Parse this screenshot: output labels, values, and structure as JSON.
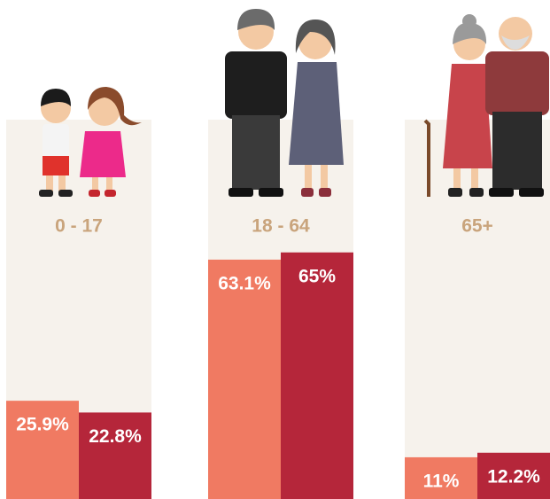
{
  "chart_data": {
    "type": "bar",
    "categories": [
      "0 - 17",
      "18 - 64",
      "65+"
    ],
    "series": [
      {
        "color": "#f07a62",
        "values": [
          25.9,
          63.1,
          11
        ],
        "value_labels": [
          "25.9%",
          "63.1%",
          "11%"
        ]
      },
      {
        "color": "#b5263a",
        "values": [
          22.8,
          65,
          12.2
        ],
        "value_labels": [
          "22.8%",
          "65%",
          "12.2%"
        ]
      }
    ],
    "ylim": [
      0,
      100
    ],
    "panel_color": "#f6f2ec",
    "category_color": "#c9a47c",
    "label_color": "#ffffff"
  }
}
